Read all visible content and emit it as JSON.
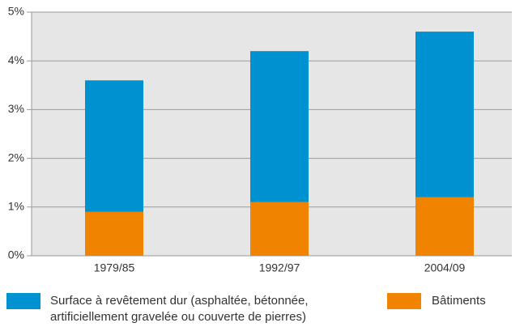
{
  "chart_data": {
    "type": "stacked-bar",
    "categories": [
      "1979/85",
      "1992/97",
      "2004/09"
    ],
    "series": [
      {
        "name": "Surface à revêtement dur (asphaltée, bétonnée, artificiellement gravelée ou couverte de pierres)",
        "color": "#0091d1",
        "values": [
          2.7,
          3.1,
          3.4
        ]
      },
      {
        "name": "Bâtiments",
        "color": "#f08400",
        "values": [
          0.9,
          1.1,
          1.2
        ]
      }
    ],
    "ylim": [
      0,
      5
    ],
    "yticks": [
      {
        "value": 0,
        "label": "0%"
      },
      {
        "value": 1,
        "label": "1%"
      },
      {
        "value": 2,
        "label": "2%"
      },
      {
        "value": 3,
        "label": "3%"
      },
      {
        "value": 4,
        "label": "4%"
      },
      {
        "value": 5,
        "label": "5%"
      }
    ],
    "grid": true
  }
}
